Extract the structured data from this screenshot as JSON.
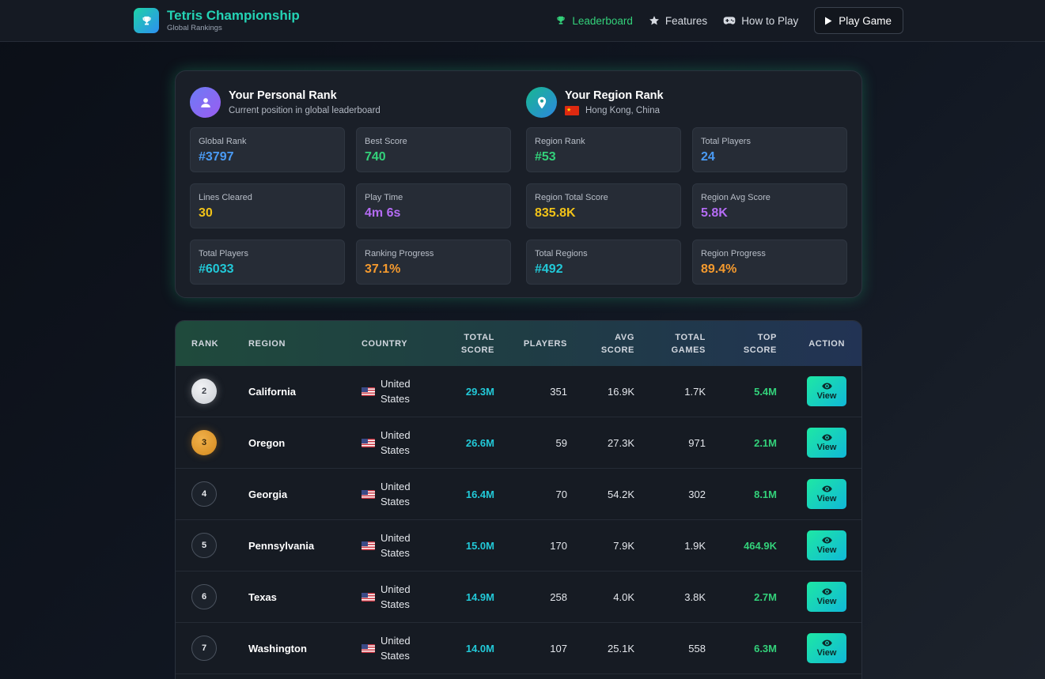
{
  "nav": {
    "brand_title": "Tetris Championship",
    "brand_subtitle": "Global Rankings",
    "links": [
      {
        "label": "Leaderboard",
        "icon": "trophy-icon"
      },
      {
        "label": "Features",
        "icon": "star-icon"
      },
      {
        "label": "How to Play",
        "icon": "gamepad-icon"
      }
    ],
    "play_label": "Play Game"
  },
  "personal": {
    "title": "Your Personal Rank",
    "subtitle": "Current position in global leaderboard",
    "stats": [
      {
        "label": "Global Rank",
        "value": "#3797",
        "color": "#4a9bf5"
      },
      {
        "label": "Best Score",
        "value": "740",
        "color": "#33d17a"
      },
      {
        "label": "Lines Cleared",
        "value": "30",
        "color": "#f2c318"
      },
      {
        "label": "Play Time",
        "value": "4m 6s",
        "color": "#b56cf5"
      },
      {
        "label": "Total Players",
        "value": "#6033",
        "color": "#22c9d8"
      },
      {
        "label": "Ranking Progress",
        "value": "37.1%",
        "color": "#f59a2e"
      }
    ]
  },
  "region": {
    "title": "Your Region Rank",
    "subtitle": "Hong Kong, China",
    "stats": [
      {
        "label": "Region Rank",
        "value": "#53",
        "color": "#33d17a"
      },
      {
        "label": "Total Players",
        "value": "24",
        "color": "#4a9bf5"
      },
      {
        "label": "Region Total Score",
        "value": "835.8K",
        "color": "#f2c318"
      },
      {
        "label": "Region Avg Score",
        "value": "5.8K",
        "color": "#b56cf5"
      },
      {
        "label": "Total Regions",
        "value": "#492",
        "color": "#22c9d8"
      },
      {
        "label": "Region Progress",
        "value": "89.4%",
        "color": "#f59a2e"
      }
    ]
  },
  "table": {
    "headers": {
      "rank": "RANK",
      "region": "REGION",
      "country": "COUNTRY",
      "total_1": "TOTAL",
      "total_2": "SCORE",
      "players": "PLAYERS",
      "avg_1": "AVG",
      "avg_2": "SCORE",
      "games_1": "TOTAL",
      "games_2": "GAMES",
      "top_1": "TOP",
      "top_2": "SCORE",
      "action": "ACTION"
    },
    "view_label": "View",
    "rows": [
      {
        "rank": "2",
        "medal": "silver",
        "region": "California",
        "country_1": "United",
        "country_2": "States",
        "total": "29.3M",
        "players": "351",
        "avg": "16.9K",
        "games": "1.7K",
        "top": "5.4M"
      },
      {
        "rank": "3",
        "medal": "bronze",
        "region": "Oregon",
        "country_1": "United",
        "country_2": "States",
        "total": "26.6M",
        "players": "59",
        "avg": "27.3K",
        "games": "971",
        "top": "2.1M"
      },
      {
        "rank": "4",
        "medal": "plain",
        "region": "Georgia",
        "country_1": "United",
        "country_2": "States",
        "total": "16.4M",
        "players": "70",
        "avg": "54.2K",
        "games": "302",
        "top": "8.1M"
      },
      {
        "rank": "5",
        "medal": "plain",
        "region": "Pennsylvania",
        "country_1": "United",
        "country_2": "States",
        "total": "15.0M",
        "players": "170",
        "avg": "7.9K",
        "games": "1.9K",
        "top": "464.9K"
      },
      {
        "rank": "6",
        "medal": "plain",
        "region": "Texas",
        "country_1": "United",
        "country_2": "States",
        "total": "14.9M",
        "players": "258",
        "avg": "4.0K",
        "games": "3.8K",
        "top": "2.7M"
      },
      {
        "rank": "7",
        "medal": "plain",
        "region": "Washington",
        "country_1": "United",
        "country_2": "States",
        "total": "14.0M",
        "players": "107",
        "avg": "25.1K",
        "games": "558",
        "top": "6.3M"
      }
    ]
  }
}
